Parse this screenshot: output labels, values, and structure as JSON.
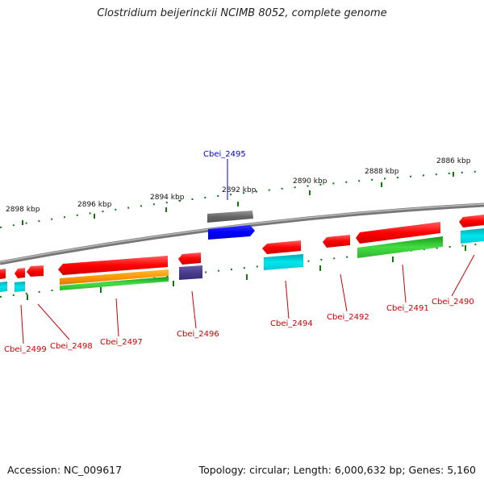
{
  "title": "Clostridium beijerinckii NCIMB 8052, complete genome",
  "footer": {
    "accession": "Accession: NC_009617",
    "topology": "Topology: circular; Length: 6,000,632 bp; Genes: 5,160"
  },
  "scale_labels": [
    "2898 kbp",
    "2896 kbp",
    "2894 kbp",
    "2892 kbp",
    "2890 kbp",
    "2888 kbp",
    "2886 kbp"
  ],
  "genes": [
    {
      "label": "Cbei_2499",
      "color": "#cc0000"
    },
    {
      "label": "Cbei_2498",
      "color": "#cc0000"
    },
    {
      "label": "Cbei_2497",
      "color": "#cc0000"
    },
    {
      "label": "Cbei_2496",
      "color": "#cc0000"
    },
    {
      "label": "Cbei_2495",
      "color": "#0000cc"
    },
    {
      "label": "Cbei_2494",
      "color": "#cc0000"
    },
    {
      "label": "Cbei_2492",
      "color": "#cc0000"
    },
    {
      "label": "Cbei_2491",
      "color": "#cc0000"
    },
    {
      "label": "Cbei_2490",
      "color": "#cc0000"
    }
  ],
  "colors": {
    "gene_red": "#ff1a1a",
    "gene_cyan": "#00d0d8",
    "gene_green": "#33bb33",
    "gene_orange": "#ff9900",
    "gene_purple": "#4a3c8c",
    "gene_blue": "#0000ff",
    "gene_grey": "#666666",
    "ticks": "#117711",
    "backbone": "#888888"
  }
}
